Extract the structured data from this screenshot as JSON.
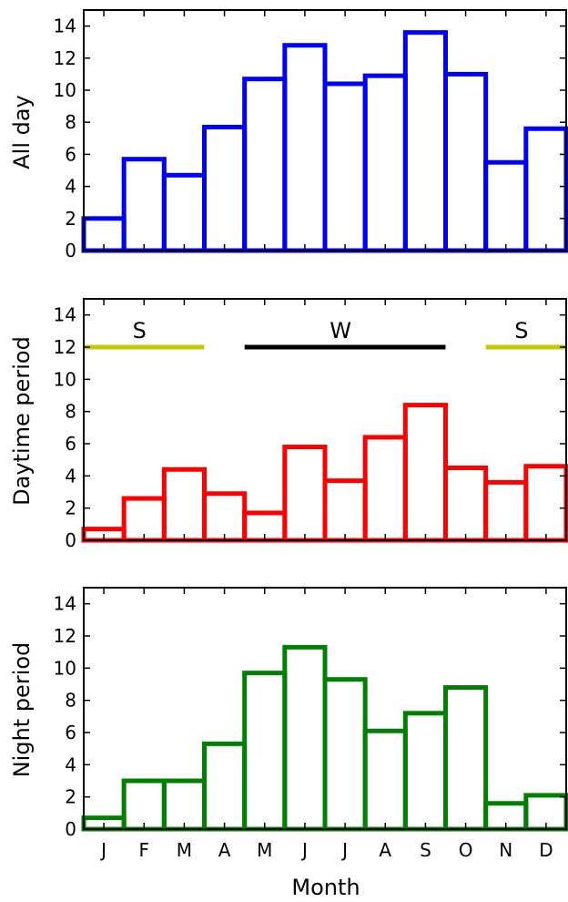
{
  "chart_data": [
    {
      "type": "bar",
      "ylabel": "All day",
      "xlabel": "",
      "categories": [
        "J",
        "F",
        "M",
        "A",
        "M",
        "J",
        "J",
        "A",
        "S",
        "O",
        "N",
        "D"
      ],
      "values": [
        2.0,
        5.7,
        4.7,
        7.7,
        10.7,
        12.8,
        10.4,
        10.9,
        13.6,
        11.0,
        5.5,
        7.6
      ],
      "ylim": [
        0,
        15
      ],
      "yticks": [
        "0",
        "2",
        "4",
        "6",
        "8",
        "10",
        "12",
        "14"
      ],
      "color": "#0000ff",
      "grid": false
    },
    {
      "type": "bar",
      "ylabel": "Daytime period",
      "xlabel": "",
      "categories": [
        "J",
        "F",
        "M",
        "A",
        "M",
        "J",
        "J",
        "A",
        "S",
        "O",
        "N",
        "D"
      ],
      "values": [
        0.7,
        2.6,
        4.4,
        2.9,
        1.7,
        5.8,
        3.7,
        6.4,
        8.4,
        4.5,
        3.6,
        4.6
      ],
      "ylim": [
        0,
        15
      ],
      "yticks": [
        "0",
        "2",
        "4",
        "6",
        "8",
        "10",
        "12",
        "14"
      ],
      "color": "#ff0000",
      "grid": false,
      "annotations": [
        {
          "label": "S",
          "x_start": 0,
          "x_end": 3,
          "y": 12,
          "color": "#c8c800"
        },
        {
          "label": "W",
          "x_start": 4,
          "x_end": 9,
          "y": 12,
          "color": "#000000"
        },
        {
          "label": "S",
          "x_start": 10,
          "x_end": 12,
          "y": 12,
          "color": "#c8c800"
        }
      ]
    },
    {
      "type": "bar",
      "ylabel": "Night period",
      "xlabel": "Month",
      "categories": [
        "J",
        "F",
        "M",
        "A",
        "M",
        "J",
        "J",
        "A",
        "S",
        "O",
        "N",
        "D"
      ],
      "values": [
        0.7,
        3.0,
        3.0,
        5.3,
        9.7,
        11.3,
        9.3,
        6.1,
        7.2,
        8.8,
        1.6,
        2.1
      ],
      "ylim": [
        0,
        15
      ],
      "yticks": [
        "0",
        "2",
        "4",
        "6",
        "8",
        "10",
        "12",
        "14"
      ],
      "color": "#008000",
      "grid": false
    }
  ]
}
